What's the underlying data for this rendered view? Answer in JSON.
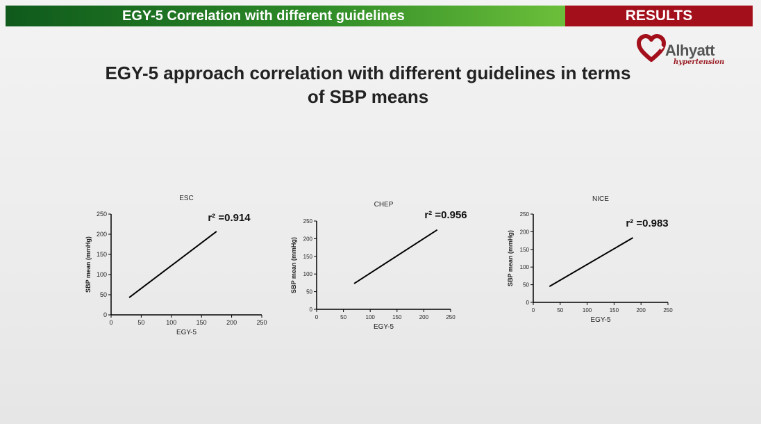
{
  "header": {
    "section_title": "EGY-5 Correlation with different guidelines",
    "tag": "RESULTS"
  },
  "logo": {
    "name": "Alhyatt",
    "tagline": "hypertension",
    "colors": {
      "heart": "#a3101c",
      "text": "#555555"
    }
  },
  "main_title": {
    "line1": "EGY-5 approach correlation with different guidelines in terms",
    "line2": "of SBP means"
  },
  "colors": {
    "header_green": "#2d8a27",
    "header_red": "#a3101c",
    "line": "#000000"
  },
  "chart_data": [
    {
      "type": "line",
      "title": "ESC",
      "xlabel": "EGY-5",
      "ylabel": "SBP mean (mmHg)",
      "xlim": [
        0,
        250
      ],
      "ylim": [
        0,
        250
      ],
      "xticks": [
        "0",
        "50",
        "100",
        "150",
        "200",
        "250"
      ],
      "yticks": [
        "0",
        "50",
        "100",
        "150",
        "200",
        "250"
      ],
      "annotation": "r² =0.914",
      "x": [
        30,
        175
      ],
      "y": [
        43,
        207
      ]
    },
    {
      "type": "line",
      "title": "CHEP",
      "xlabel": "EGY-5",
      "ylabel": "SBP mean (mmHg)",
      "xlim": [
        0,
        250
      ],
      "ylim": [
        0,
        250
      ],
      "xticks": [
        "0",
        "50",
        "100",
        "150",
        "200",
        "250"
      ],
      "yticks": [
        "0",
        "50",
        "100",
        "150",
        "200",
        "250"
      ],
      "annotation": "r² =0.956",
      "x": [
        70,
        225
      ],
      "y": [
        73,
        225
      ]
    },
    {
      "type": "line",
      "title": "NICE",
      "xlabel": "EGY-5",
      "ylabel": "SBP mean (mmHg)",
      "xlim": [
        0,
        250
      ],
      "ylim": [
        0,
        250
      ],
      "xticks": [
        "0",
        "50",
        "100",
        "150",
        "200",
        "250"
      ],
      "yticks": [
        "0",
        "50",
        "100",
        "150",
        "200",
        "250"
      ],
      "annotation": "r² =0.983",
      "x": [
        30,
        185
      ],
      "y": [
        45,
        183
      ]
    }
  ]
}
